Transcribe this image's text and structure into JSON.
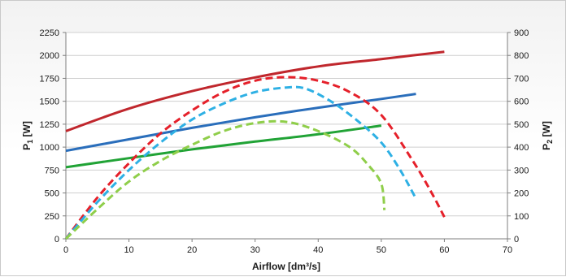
{
  "chart_data": {
    "type": "line",
    "xlabel": "Airflow [dm³/s]",
    "ylabel_left": {
      "base": "P",
      "sub": "1",
      "unit": " [W]"
    },
    "ylabel_right": {
      "base": "P",
      "sub": "2",
      "unit": " [W]"
    },
    "xlim": [
      0,
      70
    ],
    "ylim_left": [
      0,
      2250
    ],
    "ylim_right": [
      0,
      900
    ],
    "x_ticks": [
      "0",
      "10",
      "20",
      "30",
      "40",
      "50",
      "60",
      "70"
    ],
    "y_left_ticks": [
      "0",
      "250",
      "500",
      "750",
      "1000",
      "1250",
      "1500",
      "1750",
      "2000",
      "2250"
    ],
    "y_right_ticks": [
      "0",
      "100",
      "200",
      "300",
      "400",
      "500",
      "600",
      "700",
      "800",
      "900"
    ],
    "grid": "horizontal",
    "series": [
      {
        "axis": "left",
        "style": "solid",
        "color": "#c0272d",
        "points": [
          [
            0,
            1175
          ],
          [
            10,
            1420
          ],
          [
            20,
            1610
          ],
          [
            30,
            1760
          ],
          [
            40,
            1880
          ],
          [
            50,
            1960
          ],
          [
            60,
            2040
          ]
        ]
      },
      {
        "axis": "left",
        "style": "solid",
        "color": "#2a6ebb",
        "points": [
          [
            0,
            960
          ],
          [
            10,
            1085
          ],
          [
            20,
            1210
          ],
          [
            30,
            1325
          ],
          [
            40,
            1430
          ],
          [
            50,
            1525
          ],
          [
            55.5,
            1580
          ]
        ]
      },
      {
        "axis": "left",
        "style": "solid",
        "color": "#21a336",
        "points": [
          [
            0,
            780
          ],
          [
            10,
            880
          ],
          [
            20,
            975
          ],
          [
            30,
            1060
          ],
          [
            40,
            1140
          ],
          [
            50,
            1235
          ]
        ]
      },
      {
        "axis": "right",
        "style": "dashed",
        "color": "#e5202a",
        "points": [
          [
            0,
            0
          ],
          [
            5,
            180
          ],
          [
            10,
            330
          ],
          [
            15,
            460
          ],
          [
            20,
            560
          ],
          [
            25,
            640
          ],
          [
            30,
            690
          ],
          [
            35,
            705
          ],
          [
            40,
            690
          ],
          [
            45,
            640
          ],
          [
            50,
            540
          ],
          [
            55,
            340
          ],
          [
            58,
            200
          ],
          [
            60,
            95
          ]
        ]
      },
      {
        "axis": "right",
        "style": "dashed",
        "color": "#2eb0e4",
        "points": [
          [
            0,
            0
          ],
          [
            5,
            160
          ],
          [
            10,
            300
          ],
          [
            15,
            420
          ],
          [
            20,
            520
          ],
          [
            25,
            590
          ],
          [
            30,
            640
          ],
          [
            35,
            660
          ],
          [
            38,
            655
          ],
          [
            42,
            600
          ],
          [
            46,
            520
          ],
          [
            50,
            420
          ],
          [
            53,
            300
          ],
          [
            55.5,
            175
          ]
        ]
      },
      {
        "axis": "right",
        "style": "dashed",
        "color": "#8fce4a",
        "points": [
          [
            0,
            0
          ],
          [
            5,
            130
          ],
          [
            10,
            250
          ],
          [
            15,
            340
          ],
          [
            20,
            410
          ],
          [
            25,
            470
          ],
          [
            30,
            505
          ],
          [
            35,
            510
          ],
          [
            40,
            470
          ],
          [
            45,
            400
          ],
          [
            48,
            320
          ],
          [
            50,
            240
          ],
          [
            50.5,
            125
          ]
        ]
      }
    ]
  }
}
